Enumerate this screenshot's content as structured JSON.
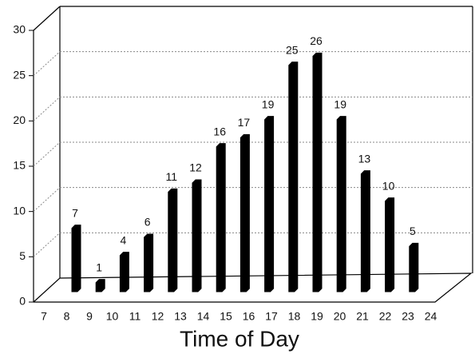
{
  "chart_data": {
    "type": "bar",
    "x_label": "Time of Day",
    "categories": [
      "7",
      "8",
      "9",
      "10",
      "11",
      "12",
      "13",
      "14",
      "15",
      "16",
      "17",
      "18",
      "19",
      "20",
      "21",
      "22",
      "23",
      "24"
    ],
    "values": [
      null,
      7,
      1,
      4,
      6,
      11,
      12,
      16,
      17,
      19,
      25,
      26,
      19,
      13,
      10,
      5,
      null,
      null
    ],
    "color": "#000000",
    "ylim": [
      0,
      30
    ],
    "yticks": [
      0,
      5,
      10,
      15,
      20,
      25,
      30
    ],
    "grid": true
  }
}
